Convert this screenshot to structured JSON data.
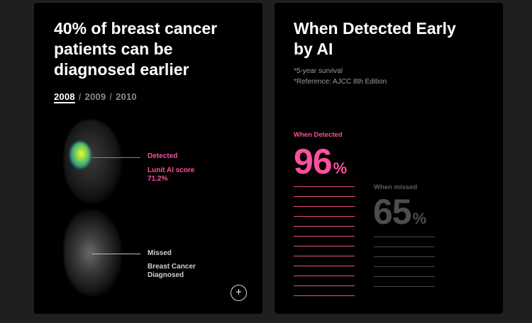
{
  "left_card": {
    "headline": "40% of breast cancer patients can be diagnosed earlier",
    "years": [
      "2008",
      "2009",
      "2010"
    ],
    "selected_year": "2008",
    "year_separator": "/",
    "annotations": {
      "detected_label": "Detected",
      "score_label": "Lunit AI score",
      "score_value": "71.2%",
      "missed_label": "Missed",
      "diagnosed_label": "Breast Cancer Diagnosed"
    },
    "expand_button_symbol": "+"
  },
  "right_card": {
    "title": "When Detected Early by AI",
    "notes": [
      "*5-year survival",
      "*Reference: AJCC 8th Edition"
    ],
    "detected": {
      "label": "When Detected",
      "value": "96",
      "unit": "%"
    },
    "missed": {
      "label": "When missed",
      "value": "65",
      "unit": "%"
    }
  },
  "colors": {
    "accent_pink": "#ff4fa0",
    "card_background": "#000000",
    "page_background": "#1f1f1f",
    "muted_gray": "#4d4d4d"
  },
  "icons": {
    "expand": "plus-circle-icon"
  }
}
